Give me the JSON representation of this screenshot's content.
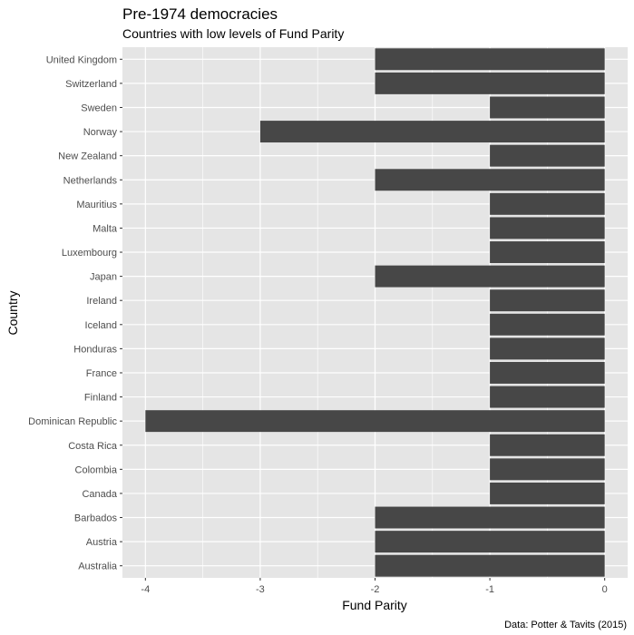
{
  "chart_data": {
    "type": "bar",
    "orientation": "horizontal",
    "title": "Pre-1974 democracies",
    "subtitle": "Countries with low levels of Fund Parity",
    "xlabel": "Fund Parity",
    "ylabel": "Country",
    "caption": "Data: Potter & Tavits (2015)",
    "xlim": [
      -4.2,
      0.2
    ],
    "xticks": [
      -4,
      -3,
      -2,
      -1,
      0
    ],
    "grid": true,
    "legend": "none",
    "colors": {
      "panel": "#e5e5e5",
      "bar": "#474747",
      "grid": "#ffffff"
    },
    "categories": [
      "United Kingdom",
      "Switzerland",
      "Sweden",
      "Norway",
      "New Zealand",
      "Netherlands",
      "Mauritius",
      "Malta",
      "Luxembourg",
      "Japan",
      "Ireland",
      "Iceland",
      "Honduras",
      "France",
      "Finland",
      "Dominican Republic",
      "Costa Rica",
      "Colombia",
      "Canada",
      "Barbados",
      "Austria",
      "Australia"
    ],
    "values": [
      -2,
      -2,
      -1,
      -3,
      -1,
      -2,
      -1,
      -1,
      -1,
      -2,
      -1,
      -1,
      -1,
      -1,
      -1,
      -4,
      -1,
      -1,
      -1,
      -2,
      -2,
      -2
    ]
  }
}
